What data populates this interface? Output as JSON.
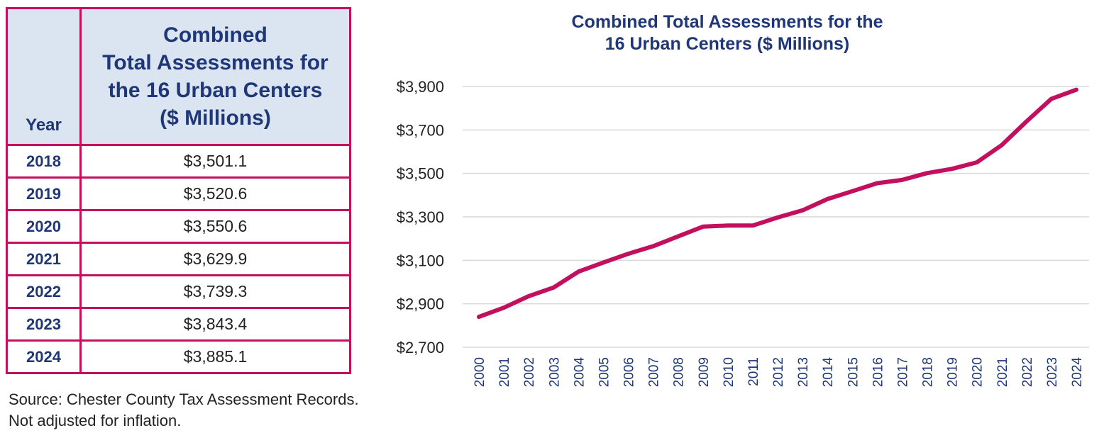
{
  "table": {
    "header_year": "Year",
    "header_value_lines": [
      "Combined",
      "Total Assessments for",
      "the 16 Urban Centers",
      "($ Millions)"
    ],
    "rows": [
      {
        "year": "2018",
        "value": "$3,501.1"
      },
      {
        "year": "2019",
        "value": "$3,520.6"
      },
      {
        "year": "2020",
        "value": "$3,550.6"
      },
      {
        "year": "2021",
        "value": "$3,629.9"
      },
      {
        "year": "2022",
        "value": "$3,739.3"
      },
      {
        "year": "2023",
        "value": "$3,843.4"
      },
      {
        "year": "2024",
        "value": "$3,885.1"
      }
    ]
  },
  "source": {
    "line1": "Source: Chester County Tax Assessment Records.",
    "line2": "Not adjusted for inflation."
  },
  "colors": {
    "accent": "#c2105f",
    "navy": "#1f3777",
    "header_bg": "#dbe4f1",
    "grid": "#d9d9d9"
  },
  "chart_data": {
    "type": "line",
    "title_lines": [
      "Combined Total Assessments for the",
      "16 Urban Centers ($ Millions)"
    ],
    "x": [
      "2000",
      "2001",
      "2002",
      "2003",
      "2004",
      "2005",
      "2006",
      "2007",
      "2008",
      "2009",
      "2010",
      "2011",
      "2012",
      "2013",
      "2014",
      "2015",
      "2016",
      "2017",
      "2018",
      "2019",
      "2020",
      "2021",
      "2022",
      "2023",
      "2024"
    ],
    "series": [
      {
        "name": "Combined Total Assessments",
        "values": [
          2840,
          2882,
          2935,
          2975,
          3048,
          3090,
          3130,
          3165,
          3210,
          3255,
          3260,
          3260,
          3297,
          3330,
          3382,
          3418,
          3455,
          3470,
          3501.1,
          3520.6,
          3550.6,
          3629.9,
          3739.3,
          3843.4,
          3885.1
        ]
      }
    ],
    "y_ticks": [
      2700,
      2900,
      3100,
      3300,
      3500,
      3700,
      3900
    ],
    "y_tick_labels": [
      "$2,700",
      "$2,900",
      "$3,100",
      "$3,300",
      "$3,500",
      "$3,700",
      "$3,900"
    ],
    "ylim": [
      2700,
      3900
    ],
    "grid": true,
    "legend": "none"
  }
}
